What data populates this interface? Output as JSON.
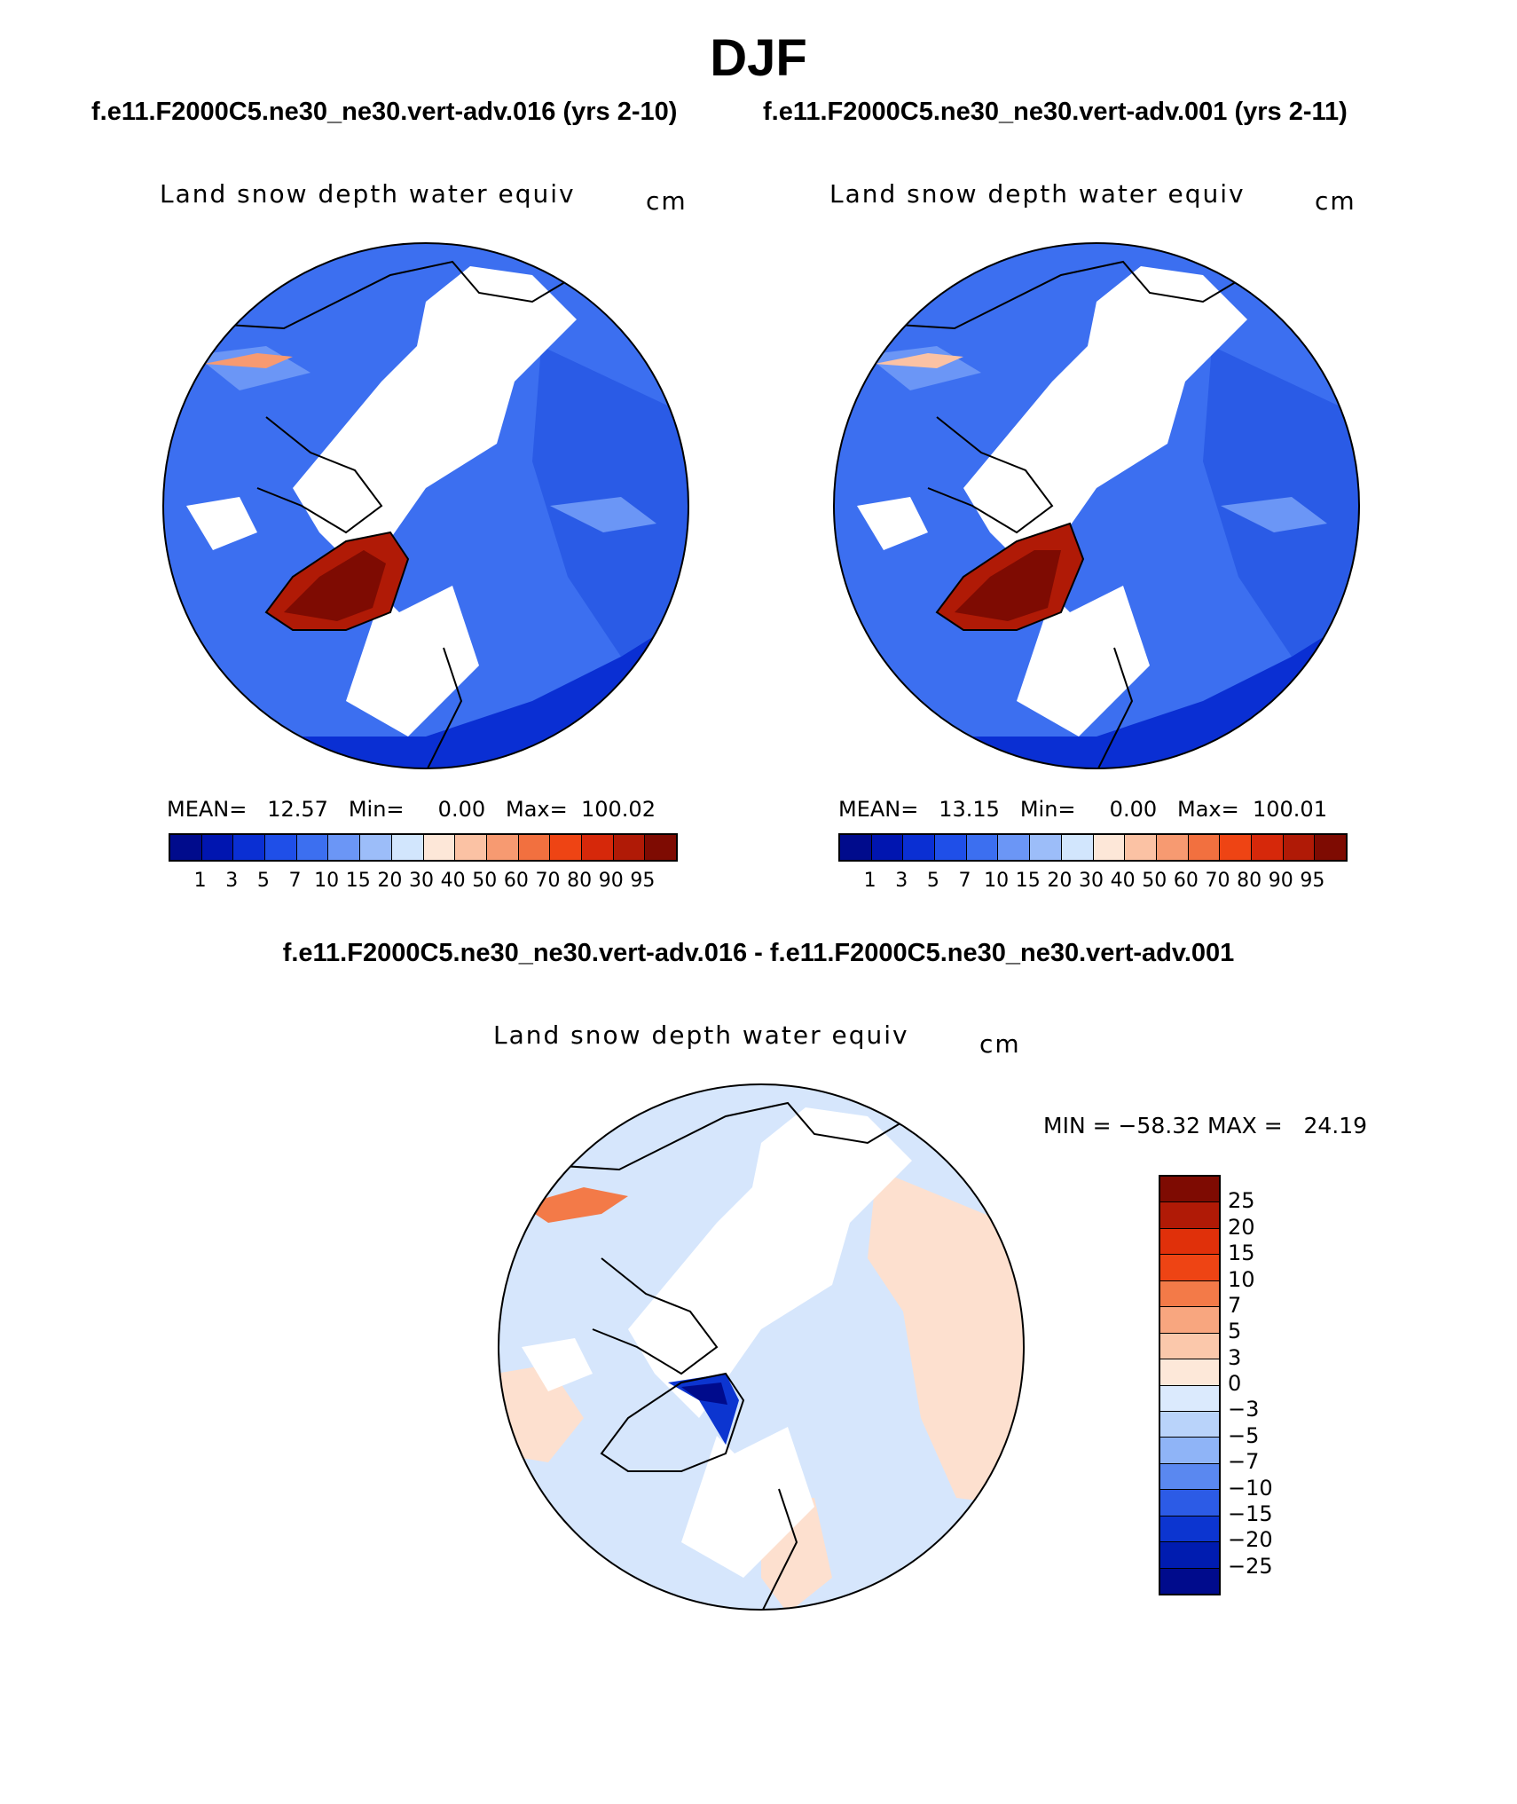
{
  "title": "DJF",
  "subtitle_left": "f.e11.F2000C5.ne30_ne30.vert-adv.016 (yrs 2-10)",
  "subtitle_right": "f.e11.F2000C5.ne30_ne30.vert-adv.001 (yrs 2-11)",
  "diff_title": "f.e11.F2000C5.ne30_ne30.vert-adv.016 - f.e11.F2000C5.ne30_ne30.vert-adv.001",
  "panels": {
    "left": {
      "variable": "Land snow depth water equiv",
      "units": "cm",
      "stats": "MEAN=   12.57   Min=     0.00   Max=  100.02"
    },
    "right": {
      "variable": "Land snow depth water equiv",
      "units": "cm",
      "stats": "MEAN=   13.15   Min=     0.00   Max=  100.01"
    },
    "diff": {
      "variable": "Land snow depth water equiv",
      "units": "cm",
      "stats": "MIN = −58.32 MAX =   24.19"
    }
  },
  "colorbar_main": {
    "ticks": [
      "1",
      "3",
      "5",
      "7",
      "10",
      "15",
      "20",
      "30",
      "40",
      "50",
      "60",
      "70",
      "80",
      "90",
      "95"
    ],
    "colors": [
      "#000b8c",
      "#0015b0",
      "#0a2fd3",
      "#1f4fe8",
      "#3c6ff0",
      "#6b96f6",
      "#9cbdf9",
      "#d2e6fd",
      "#fde7d8",
      "#fbc2a4",
      "#f79a71",
      "#f2703f",
      "#ee4414",
      "#d6280a",
      "#b01a06",
      "#7e0b02"
    ]
  },
  "colorbar_diff": {
    "ticks": [
      "25",
      "20",
      "15",
      "10",
      "7",
      "5",
      "3",
      "0",
      "−3",
      "−5",
      "−7",
      "−10",
      "−15",
      "−20",
      "−25"
    ],
    "colors": [
      "#7e0b02",
      "#b01a06",
      "#e0300a",
      "#ee4414",
      "#f37a48",
      "#f8a67f",
      "#fbc8ab",
      "#fde8d9",
      "#dbeafd",
      "#b9d3fa",
      "#8fb4f7",
      "#5a88f0",
      "#2c5be6",
      "#0c35d0",
      "#001cb0",
      "#000b8c"
    ]
  },
  "map_colors": {
    "outline": "#000000",
    "snow_blue_dark": "#0a2fd3",
    "snow_blue_mid": "#3c6ff0",
    "snow_blue_light": "#6b96f6",
    "greenland_red": "#b01a06",
    "diff_pink": "#fde0cf",
    "diff_light_blue": "#d6e6fc"
  }
}
